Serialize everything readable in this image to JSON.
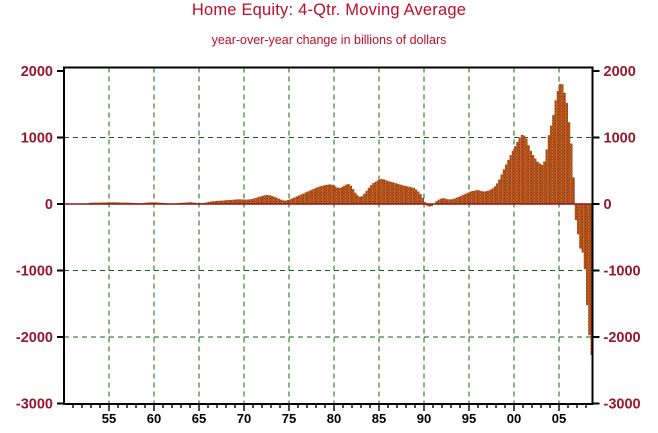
{
  "title": "Home Equity: 4-Qtr. Moving Average",
  "subtitle": "year-over-year change in billions of dollars",
  "colors": {
    "title": "#be0e2c",
    "subtitle": "#be0e2c",
    "axis_label": "#96182e",
    "tick_label": "#000000",
    "bar_base": "#bc571a",
    "bar_dot": "#7d2c0e",
    "zero_line": "#8b1a1a",
    "gridline": "#136013",
    "frame": "#000000",
    "background": "#ffffff"
  },
  "chart_data": {
    "type": "bar",
    "title": "Home Equity: 4-Qtr. Moving Average",
    "subtitle": "year-over-year change in billions of dollars",
    "xlabel": "",
    "ylabel": "billions of dollars",
    "frequency": "quarterly",
    "x_start": 1953.0,
    "x_step": 0.25,
    "xlim": [
      1949.9,
      2008.8
    ],
    "ylim": [
      -3000,
      2060
    ],
    "grid": "dashed-green",
    "legend_position": "none",
    "y_tick_values": [
      2000,
      1000,
      0,
      -1000,
      -2000,
      -3000
    ],
    "y_tick_labels": [
      "2000",
      "1000",
      "0",
      "-1000",
      "-2000",
      "-3000"
    ],
    "h_gridline_values": [
      1000,
      -1000,
      -2000
    ],
    "x_tick_years": [
      1955,
      1960,
      1965,
      1970,
      1975,
      1980,
      1985,
      1990,
      1995,
      2000,
      2005
    ],
    "x_tick_labels": [
      "55",
      "60",
      "65",
      "70",
      "75",
      "80",
      "85",
      "90",
      "95",
      "00",
      "05"
    ],
    "x_minor_tick_range": [
      1951,
      2008
    ],
    "values": [
      18,
      20,
      20,
      20,
      20,
      22,
      22,
      22,
      25,
      25,
      25,
      25,
      25,
      22,
      22,
      20,
      20,
      20,
      18,
      18,
      15,
      12,
      10,
      12,
      15,
      20,
      22,
      25,
      25,
      25,
      22,
      20,
      18,
      15,
      12,
      10,
      8,
      8,
      10,
      12,
      15,
      18,
      20,
      22,
      25,
      25,
      22,
      18,
      12,
      10,
      12,
      18,
      25,
      32,
      38,
      42,
      45,
      48,
      50,
      52,
      55,
      58,
      60,
      62,
      65,
      68,
      70,
      70,
      68,
      66,
      66,
      70,
      75,
      85,
      95,
      105,
      115,
      125,
      132,
      135,
      130,
      120,
      110,
      95,
      80,
      65,
      55,
      50,
      60,
      70,
      85,
      100,
      115,
      130,
      145,
      160,
      175,
      190,
      205,
      220,
      235,
      250,
      262,
      272,
      280,
      288,
      292,
      295,
      285,
      265,
      248,
      240,
      255,
      275,
      292,
      300,
      275,
      225,
      170,
      130,
      108,
      118,
      155,
      200,
      245,
      285,
      315,
      335,
      355,
      372,
      375,
      365,
      352,
      342,
      332,
      322,
      312,
      302,
      292,
      282,
      274,
      266,
      258,
      250,
      240,
      218,
      188,
      148,
      92,
      28,
      -28,
      -42,
      -30,
      5,
      40,
      65,
      80,
      88,
      82,
      72,
      68,
      72,
      82,
      95,
      108,
      122,
      138,
      155,
      170,
      185,
      195,
      200,
      210,
      205,
      195,
      188,
      192,
      200,
      215,
      235,
      265,
      310,
      370,
      445,
      520,
      595,
      662,
      735,
      800,
      870,
      935,
      1000,
      1040,
      1030,
      985,
      885,
      800,
      735,
      685,
      635,
      610,
      590,
      640,
      820,
      1035,
      1180,
      1340,
      1560,
      1700,
      1805,
      1800,
      1670,
      1520,
      1230,
      910,
      400,
      -240,
      -455,
      -670,
      -730,
      -980,
      -1520,
      -1970,
      -2270
    ]
  }
}
